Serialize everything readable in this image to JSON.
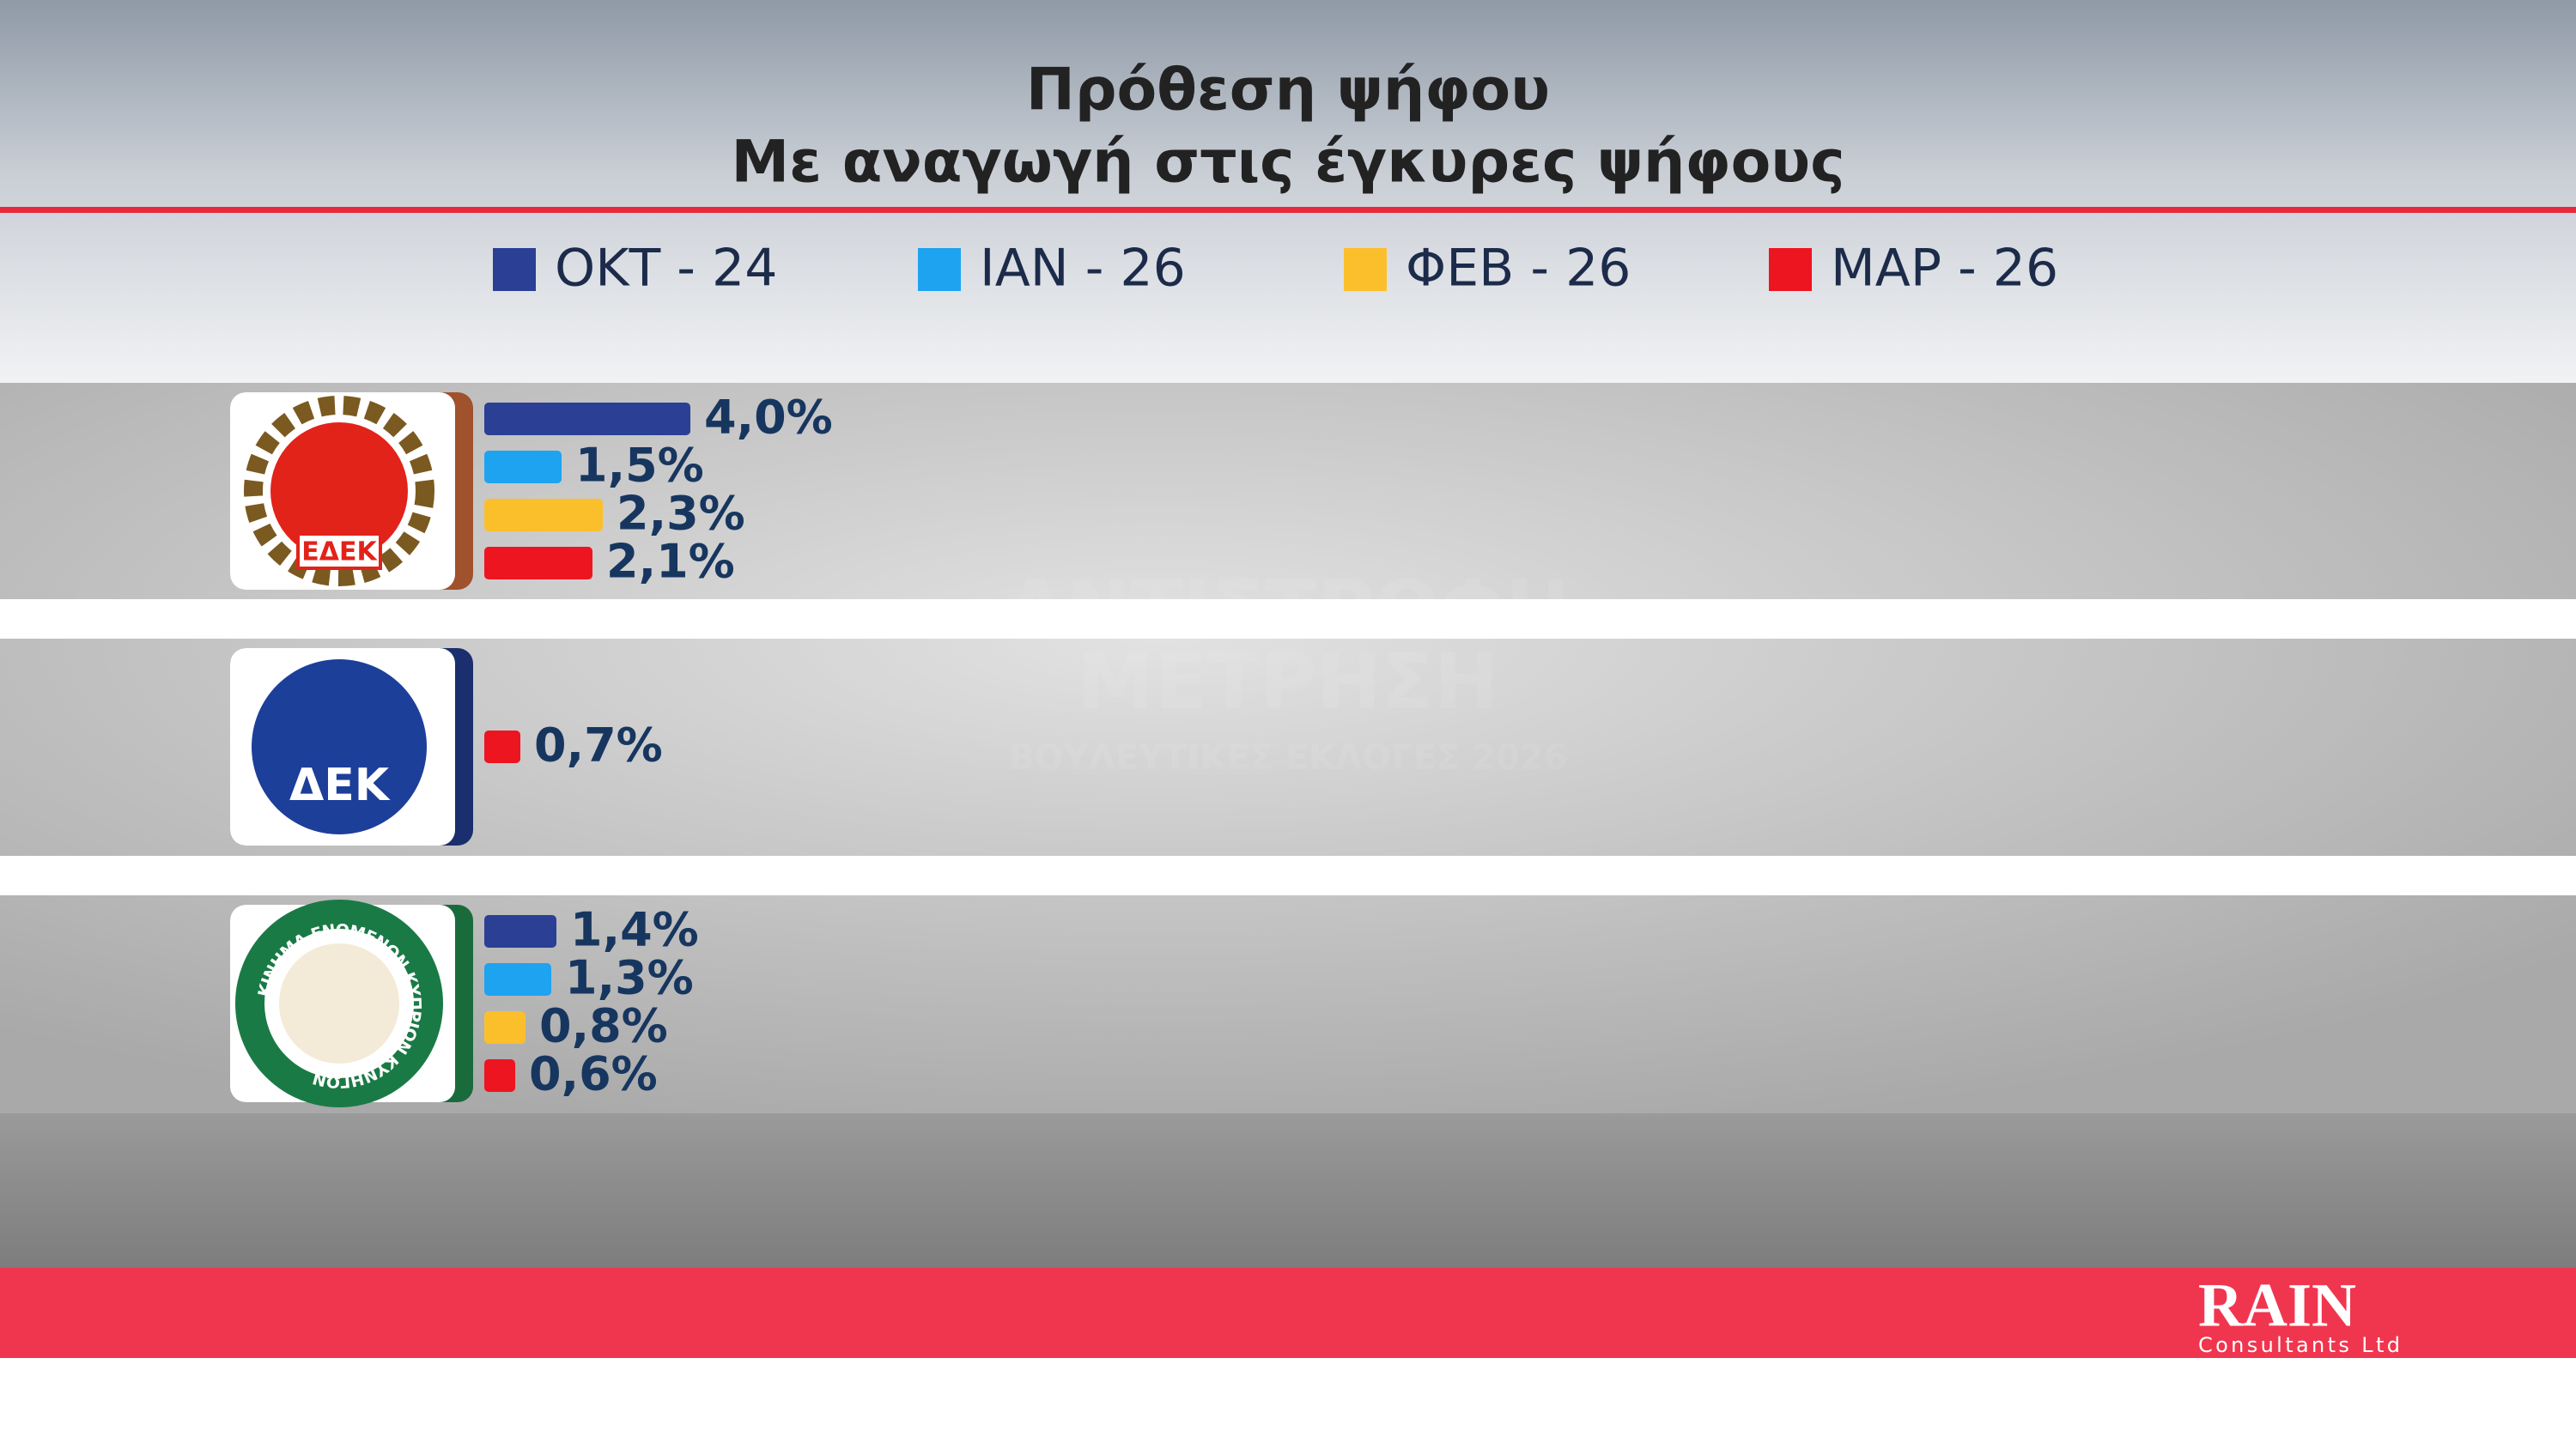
{
  "chart_data": {
    "type": "bar",
    "title": "Πρόθεση ψήφου",
    "subtitle": "Με αναγωγή στις έγκυρες ψήφους",
    "categories": [
      "ΕΔΕΚ",
      "ΔΕΚ",
      "ΚΙΝΗΜΑ ΕΝΩΜΕΝΩΝ ΚΥΠΡΙΩΝ ΚΥΝΗΓΩΝ"
    ],
    "series": [
      {
        "name": "ΟΚΤ - 24",
        "color": "#2b3f94",
        "values": [
          4.0,
          null,
          1.4
        ],
        "value_labels": [
          "4,0%",
          null,
          "1,4%"
        ]
      },
      {
        "name": "ΙΑΝ - 26",
        "color": "#1ea3f0",
        "values": [
          1.5,
          null,
          1.3
        ],
        "value_labels": [
          "1,5%",
          null,
          "1,3%"
        ]
      },
      {
        "name": "ΦΕΒ - 26",
        "color": "#fbbf2c",
        "values": [
          2.3,
          null,
          0.8
        ],
        "value_labels": [
          "2,3%",
          null,
          "0,8%"
        ]
      },
      {
        "name": "ΜΑΡ - 26",
        "color": "#ec1520",
        "values": [
          2.1,
          0.7,
          0.6
        ],
        "value_labels": [
          "2,1%",
          "0,7%",
          "0,6%"
        ]
      }
    ]
  },
  "watermark": [
    "ΑΝΤΙΣΤΡΟΦΗ",
    "ΜΕΤΡΗΣΗ",
    "ΒΟΥΛΕΥΤΙΚΕΣ ΕΚΛΟΓΕΣ 2026"
  ],
  "footer": {
    "brand": "RAIN",
    "tagline": "Consultants Ltd"
  }
}
